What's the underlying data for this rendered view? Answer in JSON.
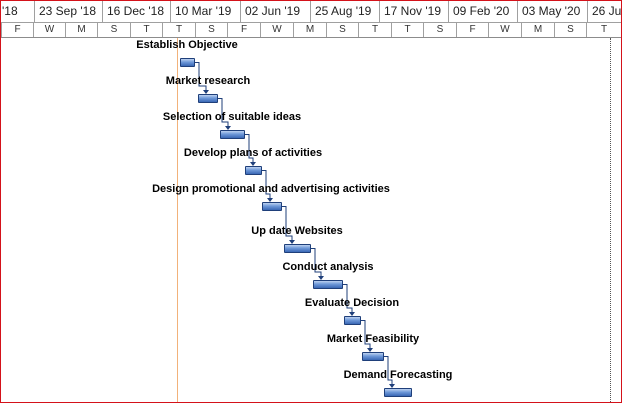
{
  "timescale": {
    "major": [
      "'18",
      "23 Sep '18",
      "16 Dec '18",
      "10 Mar '19",
      "02 Jun '19",
      "25 Aug '19",
      "17 Nov '19",
      "09 Feb '20",
      "03 May '20",
      "26 Ju"
    ],
    "minor": [
      "F",
      "W",
      "M",
      "S",
      "T",
      "T",
      "S",
      "F",
      "W",
      "M",
      "S",
      "T",
      "T",
      "S",
      "F",
      "W",
      "M",
      "S",
      "T"
    ]
  },
  "colors": {
    "bar_fill": "#4f7fc9",
    "bar_border": "#1f3f7a",
    "status_line": "#f2b27a",
    "window_border": "#d4121a",
    "link": "#1f3f7a"
  },
  "tasks": [
    {
      "name": "Establish Objective"
    },
    {
      "name": "Market research"
    },
    {
      "name": "Selection of suitable ideas"
    },
    {
      "name": "Develop plans of activities"
    },
    {
      "name": "Design promotional and advertising activities"
    },
    {
      "name": "Up date Websites"
    },
    {
      "name": "Conduct analysis"
    },
    {
      "name": "Evaluate Decision"
    },
    {
      "name": "Market Feasibility"
    },
    {
      "name": "Demand Forecasting"
    }
  ]
}
